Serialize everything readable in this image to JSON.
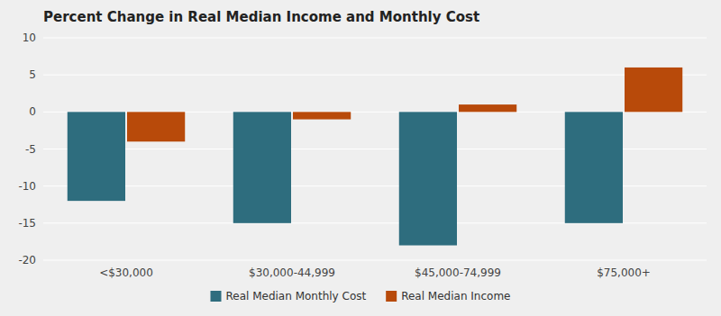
{
  "chart_data": {
    "type": "bar",
    "title": "Percent Change in Real Median Income and Monthly Cost",
    "categories": [
      "<$30,000",
      "$30,000-44,999",
      "$45,000-74,999",
      "$75,000+"
    ],
    "series": [
      {
        "name": "Real Median Monthly Cost",
        "color": "#2E6D7E",
        "values": [
          -12,
          -15,
          -18,
          -15
        ]
      },
      {
        "name": "Real Median Income",
        "color": "#B84A0A",
        "values": [
          -4,
          -1,
          1,
          6
        ]
      }
    ],
    "ylim": [
      -20,
      10
    ],
    "yticks": [
      -20,
      -15,
      -10,
      -5,
      0,
      5,
      10
    ],
    "grid": true,
    "legend": "bottom"
  }
}
